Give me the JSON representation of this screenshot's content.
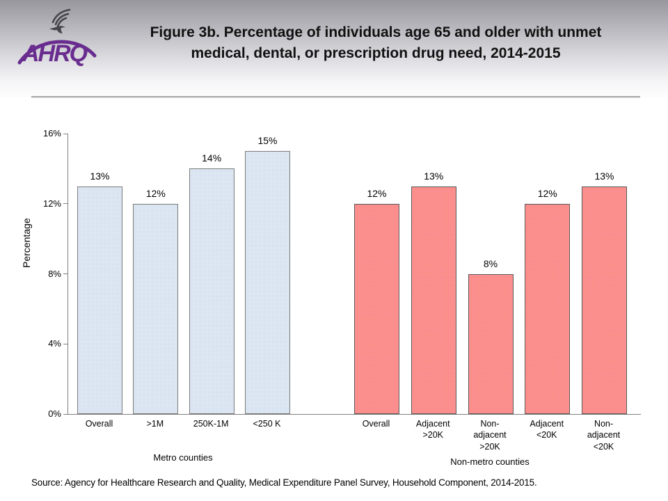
{
  "header": {
    "title": "Figure 3b. Percentage of individuals age 65 and older with unmet medical, dental, or prescription drug need, 2014-2015",
    "logo": {
      "agency_abbreviation": "AHRQ",
      "eagle_icon": "hhs-eagle-icon"
    }
  },
  "chart_data": {
    "type": "bar",
    "title": "Figure 3b. Percentage of individuals age 65 and older with unmet medical, dental, or prescription drug need, 2014-2015",
    "xlabel": "",
    "ylabel": "Percentage",
    "ylim": [
      0,
      16
    ],
    "y_ticks": [
      {
        "value": 0,
        "label": "0%"
      },
      {
        "value": 4,
        "label": "4%"
      },
      {
        "value": 8,
        "label": "8%"
      },
      {
        "value": 12,
        "label": "12%"
      },
      {
        "value": 16,
        "label": "16%"
      }
    ],
    "grid": false,
    "legend": false,
    "groups": [
      {
        "label": "Metro counties",
        "fill_color": "#dce6f2",
        "dot_color": "#b9cde6",
        "border_color": "#7a7a7a",
        "bars": [
          {
            "category": "Overall",
            "category_display": "Overall",
            "value": 13,
            "data_label": "13%"
          },
          {
            "category": ">1M",
            "category_display": ">1M",
            "value": 12,
            "data_label": "12%"
          },
          {
            "category": "250K-1M",
            "category_display": "250K-1M",
            "value": 14,
            "data_label": "14%"
          },
          {
            "category": "<250 K",
            "category_display": "<250 K",
            "value": 15,
            "data_label": "15%"
          }
        ]
      },
      {
        "label": "Non-metro counties",
        "fill_color": "#fb8e8e",
        "dot_color": "#f0944f",
        "border_color": "#5a5a5a",
        "bars": [
          {
            "category": "Overall",
            "category_display": "Overall",
            "value": 12,
            "data_label": "12%"
          },
          {
            "category": "Adjacent >20K",
            "category_display": "Adjacent\n>20K",
            "value": 13,
            "data_label": "13%"
          },
          {
            "category": "Non-adjacent >20K",
            "category_display": "Non-\nadjacent\n>20K",
            "value": 8,
            "data_label": "8%"
          },
          {
            "category": "Adjacent <20K",
            "category_display": "Adjacent\n<20K",
            "value": 12,
            "data_label": "12%"
          },
          {
            "category": "Non-adjacent <20K",
            "category_display": "Non-\nadjacent\n<20K",
            "value": 13,
            "data_label": "13%"
          }
        ]
      }
    ]
  },
  "footer": {
    "source": "Source: Agency for Healthcare Research and Quality, Medical Expenditure Panel Survey, Household Component, 2014-2015."
  }
}
